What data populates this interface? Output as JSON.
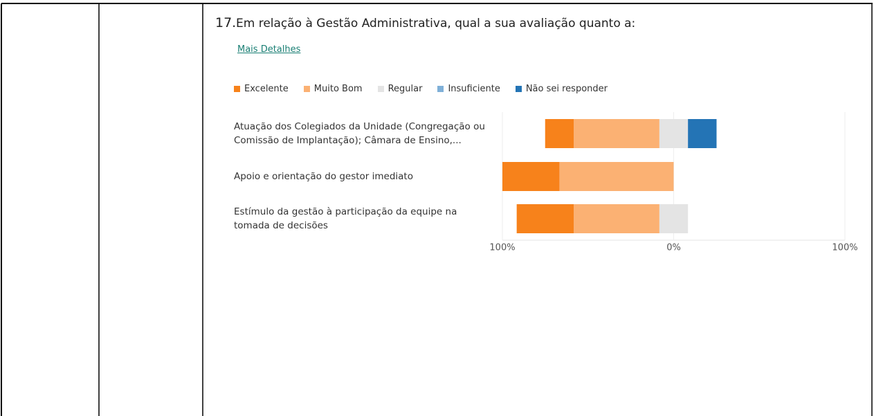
{
  "chart_data": {
    "type": "diverging-bar",
    "number": "17.",
    "title": "Em relação à Gestão Administrativa, qual a sua avaliação quanto a:",
    "link": "Mais Detalhes",
    "categories": [
      "Atuação dos Colegiados da Unidade (Congregação ou Comissão de Implantação); Câmara de Ensino,...",
      "Apoio e orientação do gestor imediato",
      "Estímulo da gestão à participação da equipe na tomada de decisões"
    ],
    "series": [
      {
        "name": "Excelente",
        "color": "#f7821b",
        "values": [
          16.7,
          33.3,
          33.3
        ]
      },
      {
        "name": "Muito Bom",
        "color": "#fbb173",
        "values": [
          50,
          66.7,
          50
        ]
      },
      {
        "name": "Regular",
        "color": "#e4e4e4",
        "values": [
          16.7,
          0,
          16.7
        ]
      },
      {
        "name": "Insuficiente",
        "color": "#7fb0d8",
        "values": [
          0,
          0,
          0
        ]
      },
      {
        "name": "Não sei responder",
        "color": "#2474b5",
        "values": [
          16.7,
          0,
          0
        ]
      }
    ],
    "xlim": [
      -100,
      100
    ],
    "xticks": [
      {
        "value": -100,
        "label": "100%"
      },
      {
        "value": 0,
        "label": "0%"
      },
      {
        "value": 100,
        "label": "100%"
      }
    ],
    "grid": true,
    "legend": "top"
  }
}
